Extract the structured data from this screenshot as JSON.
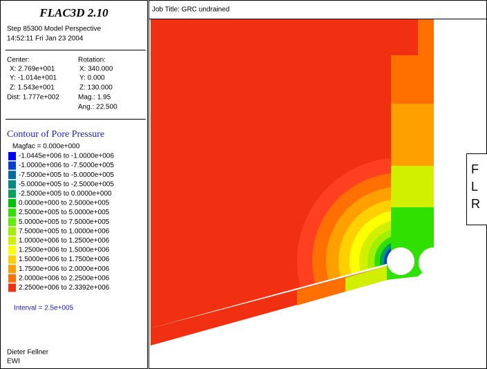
{
  "panel": {
    "title": "FLAC3D 2.10",
    "step": "Step 85300  Model Perspective",
    "time": "14:52:11 Fri Jan 23 2004",
    "center": {
      "heading": "Center:",
      "x": "X: 2.769e+001",
      "y": "Y: -1.014e+001",
      "z": "Z: 1.543e+001",
      "dist": "Dist: 1.777e+002"
    },
    "rotation": {
      "heading": "Rotation:",
      "x": "X: 340.000",
      "y": "Y:   0.000",
      "z": "Z: 130.000",
      "mag": "Mag.:    1.95",
      "ang": "Ang.:  22.500"
    },
    "contour_title": "Contour of Pore Pressure",
    "magfac": "Magfac =  0.000e+000",
    "legend": [
      {
        "label": "-1.0445e+006 to -1.0000e+006",
        "color": "#0000ff"
      },
      {
        "label": "-1.0000e+006 to -7.5000e+005",
        "color": "#0040d0"
      },
      {
        "label": "-7.5000e+005 to -5.0000e+005",
        "color": "#006aa0"
      },
      {
        "label": "-5.0000e+005 to -2.5000e+005",
        "color": "#008a80"
      },
      {
        "label": "-2.5000e+005 to  0.0000e+000",
        "color": "#00a060"
      },
      {
        "label": "0.0000e+000 to  2.5000e+005",
        "color": "#00c000"
      },
      {
        "label": "2.5000e+005 to  5.0000e+005",
        "color": "#30e000"
      },
      {
        "label": "5.0000e+005 to  7.5000e+005",
        "color": "#60f000"
      },
      {
        "label": "7.5000e+005 to  1.0000e+006",
        "color": "#a0f000"
      },
      {
        "label": "1.0000e+006 to  1.2500e+006",
        "color": "#d0f000"
      },
      {
        "label": "1.2500e+006 to  1.5000e+006",
        "color": "#ffff00"
      },
      {
        "label": "1.5000e+006 to  1.7500e+006",
        "color": "#ffd000"
      },
      {
        "label": "1.7500e+006 to  2.0000e+006",
        "color": "#ffa000"
      },
      {
        "label": "2.0000e+006 to  2.2500e+006",
        "color": "#ff7000"
      },
      {
        "label": "2.2500e+006 to  2.3392e+006",
        "color": "#f03010"
      }
    ],
    "interval": "Interval =  2.5e+005",
    "author": "Dieter Fellner",
    "org": "EWI"
  },
  "plot": {
    "job_title": "Job Title: GRC undrained",
    "box_lines": [
      "F",
      "L",
      "R"
    ]
  }
}
